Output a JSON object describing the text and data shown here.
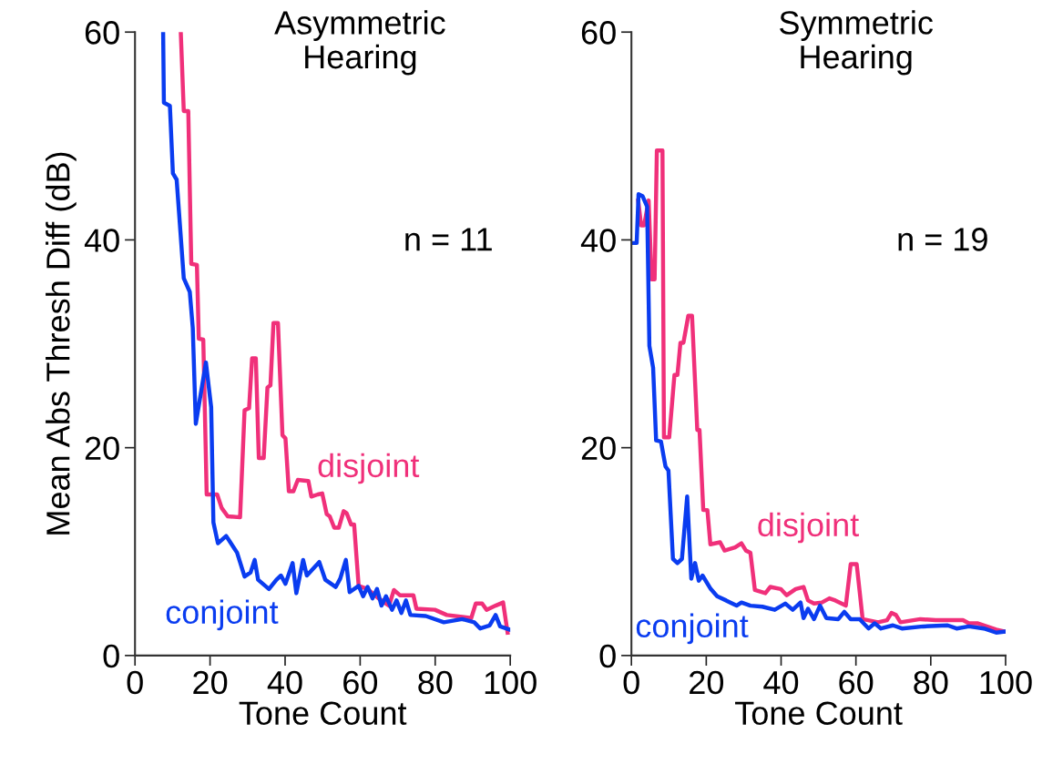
{
  "chart_data": [
    {
      "type": "line",
      "title": "Asymmetric\nHearing",
      "xlabel": "Tone Count",
      "ylabel": "Mean Abs Thresh Diff (dB)",
      "annotations": [
        "n = 11"
      ],
      "xlim": [
        0,
        100
      ],
      "ylim": [
        0,
        60
      ],
      "xticks": [
        0,
        20,
        40,
        60,
        80,
        100
      ],
      "yticks": [
        0,
        20,
        40,
        60
      ],
      "grid": false,
      "legend": false,
      "line_style": "solid",
      "series": [
        {
          "name": "disjoint",
          "color": "#f0307a",
          "x": [
            12.2,
            13,
            14.2,
            15,
            16.5,
            17,
            18.2,
            19.1,
            21.9,
            23.1,
            24.7,
            28,
            29.2,
            30.4,
            31.2,
            32.2,
            33,
            34.3,
            35.3,
            36.1,
            36.9,
            38.1,
            39.3,
            40.1,
            41,
            42.2,
            43.4,
            46.2,
            47,
            48.7,
            49.9,
            51.1,
            51.9,
            53.1,
            54.3,
            55.6,
            56.4,
            57.6,
            58.4,
            59.6,
            62,
            64.9,
            67.7,
            69,
            70.6,
            74.2,
            75,
            79.9,
            83.1,
            89.6,
            90.8,
            92.5,
            93.7,
            96.1,
            98.1,
            99.3
          ],
          "values": [
            60,
            52.4,
            52.4,
            37.7,
            37.6,
            30.5,
            30.4,
            15.5,
            15.5,
            14.2,
            13.4,
            13.3,
            23.6,
            23.8,
            28.6,
            28.6,
            19,
            19,
            25.8,
            26,
            32,
            32,
            21.2,
            20.9,
            15.8,
            15.8,
            16.9,
            16.8,
            15.3,
            15.5,
            15.6,
            13.6,
            13.4,
            12.3,
            12.3,
            13.9,
            13.7,
            12.6,
            12.6,
            6.7,
            6.4,
            5.5,
            4.8,
            6.3,
            5.8,
            5.8,
            4.5,
            4.4,
            3.9,
            3.6,
            5,
            5,
            4.4,
            4.8,
            5.1,
            2.2
          ]
        },
        {
          "name": "conjoint",
          "color": "#0a3cf0",
          "x": [
            7.5,
            7.7,
            9.3,
            10.1,
            11.1,
            13,
            14.6,
            15.4,
            16.2,
            18.9,
            20.3,
            20.9,
            22.1,
            24.3,
            27.2,
            29.2,
            30.8,
            31.9,
            32.8,
            35.7,
            37.7,
            38.9,
            40.1,
            42,
            43,
            44.8,
            45.8,
            49.1,
            50.7,
            53.5,
            54.7,
            56.2,
            57.2,
            59.6,
            60.8,
            62,
            63.3,
            64.5,
            65.7,
            66.9,
            68.5,
            69.7,
            71,
            72.2,
            73.4,
            77.5,
            82.3,
            87.2,
            90.4,
            92,
            94.5,
            96.1,
            97.3,
            99.8
          ],
          "values": [
            60,
            53.2,
            52.9,
            46.4,
            45.8,
            36.3,
            35,
            31.5,
            22.3,
            28.2,
            23.9,
            12.8,
            10.8,
            11.5,
            9.9,
            7.6,
            8,
            9.2,
            7.3,
            6.4,
            7.3,
            7.7,
            6.9,
            8.9,
            6,
            9.2,
            7.7,
            9,
            7.3,
            6.6,
            7.4,
            9.2,
            6.1,
            6.7,
            5.7,
            6.6,
            5.5,
            6.4,
            4.8,
            5.7,
            4.4,
            5.3,
            4.1,
            5.3,
            3.9,
            3.8,
            3.2,
            3.5,
            3.2,
            2.6,
            2.9,
            3.9,
            2.8,
            2.5
          ]
        }
      ]
    },
    {
      "type": "line",
      "title": "Symmetric\nHearing",
      "xlabel": "Tone Count",
      "annotations": [
        "n = 19"
      ],
      "xlim": [
        0,
        100
      ],
      "ylim": [
        0,
        60
      ],
      "xticks": [
        0,
        20,
        40,
        60,
        80,
        100
      ],
      "yticks": [
        0,
        20,
        40,
        60
      ],
      "grid": false,
      "legend": false,
      "line_style": "solid",
      "series": [
        {
          "name": "disjoint",
          "color": "#f0307a",
          "x": [
            1.8,
            2.6,
            3.4,
            4.6,
            5.4,
            6.2,
            6.8,
            8.3,
            8.7,
            10.1,
            11.5,
            12.3,
            13.1,
            13.9,
            15.2,
            16.2,
            17.6,
            18.2,
            19.2,
            20.3,
            21.1,
            23.7,
            24.9,
            27.7,
            29.4,
            30.6,
            31.8,
            33,
            35.8,
            37.1,
            39.9,
            41.5,
            43.9,
            46,
            47.2,
            48.8,
            50.9,
            52.9,
            54.5,
            57.3,
            58.6,
            60.2,
            61.8,
            65.9,
            68.3,
            69.5,
            70.7,
            71.9,
            77.2,
            81.3,
            88.6,
            90.2,
            92.6,
            97.5,
            99.9
          ],
          "values": [
            43.8,
            41.4,
            41.4,
            43.8,
            36.2,
            36.2,
            48.6,
            48.6,
            21,
            21,
            27,
            27,
            30.1,
            30.1,
            32.7,
            32.7,
            21.7,
            21.7,
            14,
            14,
            10.7,
            10.9,
            10.1,
            10.4,
            10.8,
            10.1,
            9.9,
            6.3,
            6,
            6.6,
            6.4,
            5.8,
            6.4,
            6.6,
            5.3,
            5,
            5.1,
            5.5,
            5.3,
            4.8,
            8.8,
            8.8,
            3.5,
            3.2,
            3.4,
            4.1,
            3.9,
            3.2,
            3.5,
            3.4,
            3.4,
            3.1,
            3.1,
            2.5,
            2.3
          ]
        },
        {
          "name": "conjoint",
          "color": "#0a3cf0",
          "x": [
            0.6,
            1.4,
            1.9,
            3,
            4.2,
            4.8,
            5.8,
            6.6,
            7.9,
            9.1,
            9.9,
            11.1,
            12.3,
            13.5,
            14.9,
            16,
            17,
            18,
            19,
            21.2,
            22.9,
            25.3,
            28.1,
            29.4,
            31.8,
            35,
            38.3,
            41.1,
            43.1,
            45.2,
            46,
            47.2,
            48.8,
            50.4,
            52.1,
            55.3,
            56.9,
            58.6,
            61,
            63.4,
            65,
            66.7,
            69.9,
            72.3,
            78,
            84.5,
            86.9,
            90.2,
            94.2,
            97.5,
            99.9
          ],
          "values": [
            39.7,
            39.7,
            44.4,
            44.2,
            43.2,
            29.8,
            27.7,
            20.7,
            20.6,
            18.2,
            17.8,
            9.3,
            8.9,
            9.3,
            15.3,
            7.4,
            8.9,
            7.2,
            7.7,
            6.4,
            5.7,
            5.3,
            4.8,
            5.1,
            4.8,
            4.7,
            4.4,
            5,
            4.4,
            5.1,
            3.6,
            4.5,
            3.5,
            4.8,
            3.6,
            3.5,
            4.2,
            3.5,
            3.5,
            2.6,
            3.1,
            2.6,
            2.9,
            2.6,
            2.8,
            2.9,
            2.6,
            2.8,
            2.6,
            2.2,
            2.3
          ]
        }
      ]
    }
  ]
}
